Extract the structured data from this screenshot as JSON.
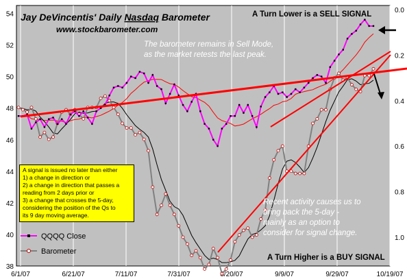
{
  "title": {
    "line1_prefix": "Jay DeVincentis' Daily ",
    "line1_underlined": "Nasdaq",
    "line1_suffix": " Barometer",
    "url": "www.stockbarometer.com"
  },
  "annotations": {
    "sell_signal": "A Turn Lower is a SELL SIGNAL",
    "buy_signal": "A Turn Higher is a BUY SIGNAL",
    "sell_mode_line1": "The barometer remains in Sell Mode,",
    "sell_mode_line2": "as the market retests the last peak.",
    "recent_line1": "Recent activity causes us to",
    "recent_line2": "bring back the 5-day -",
    "recent_line3": "mainly as an option to",
    "recent_line4": "consider for signal change.",
    "box_line1": "A signal is issued no later than either",
    "box_line2": "1) a change in direction or",
    "box_line3": "2) a change in direction that passes a",
    "box_line4": "reading from 2 days prior or",
    "box_line5": "3) a change that crosses the 5-day,",
    "box_line6": "considering the position of the Qs to",
    "box_line7": "its 9 day moving average."
  },
  "legend": {
    "qqqq": "QQQQ Close",
    "barometer": "Barometer"
  },
  "colors": {
    "plot_bg": "#c0c0c0",
    "qqqq": "#ff00ff",
    "barometer_line": "#808080",
    "barometer_marker": "#c00000",
    "ma": "#ff0000",
    "black": "#000000",
    "trend": "#ff0000"
  },
  "chart_data": {
    "type": "line",
    "x_ticks": [
      "6/1/07",
      "6/21/07",
      "7/11/07",
      "7/31/07",
      "8/20/07",
      "9/9/07",
      "9/29/07",
      "10/19/07"
    ],
    "y_left": {
      "ticks": [
        "38",
        "40",
        "42",
        "44",
        "46",
        "48",
        "50",
        "52",
        "54"
      ],
      "range": [
        38,
        54.5
      ]
    },
    "y_right": {
      "ticks": [
        "0.0",
        "0.2",
        "0.4",
        "0.6",
        "0.8",
        "1.0"
      ],
      "range": [
        0,
        1.2
      ],
      "inverted": true
    },
    "series": [
      {
        "name": "QQQQ Close",
        "axis": "left",
        "values": [
          47.5,
          47.5,
          47.6,
          46.7,
          47.1,
          47.3,
          46.8,
          47.3,
          47.4,
          47.0,
          47.3,
          47.0,
          47.6,
          47.8,
          47.5,
          47.8,
          47.4,
          47.0,
          47.8,
          48.0,
          48.2,
          48.8,
          49.3,
          49.4,
          49.3,
          49.6,
          50.0,
          49.9,
          50.3,
          50.2,
          49.6,
          50.1,
          49.4,
          49.2,
          48.3,
          48.9,
          49.5,
          48.8,
          48.2,
          47.8,
          48.4,
          48.9,
          47.8,
          47.0,
          46.7,
          46.0,
          45.6,
          46.7,
          47.0,
          47.5,
          47.5,
          48.2,
          47.7,
          48.2,
          47.5,
          46.8,
          48.1,
          48.7,
          49.0,
          49.4,
          48.9,
          49.0,
          48.7,
          48.9,
          49.2,
          49.0,
          49.3,
          49.6,
          49.9,
          50.1,
          50.0,
          49.6,
          50.6,
          51.0,
          51.4,
          51.7,
          52.4,
          52.7,
          52.9,
          53.3,
          53.6,
          53.2,
          53.2
        ]
      },
      {
        "name": "Barometer",
        "axis": "right",
        "values": [
          0.43,
          0.44,
          0.45,
          0.43,
          0.48,
          0.56,
          0.54,
          0.57,
          0.56,
          0.5,
          0.45,
          0.44,
          0.46,
          0.44,
          0.46,
          0.48,
          0.43,
          0.43,
          0.43,
          0.39,
          0.38,
          0.4,
          0.43,
          0.46,
          0.5,
          0.52,
          0.52,
          0.55,
          0.54,
          0.57,
          0.62,
          0.78,
          0.9,
          0.86,
          0.81,
          0.86,
          0.9,
          0.95,
          1.0,
          1.03,
          1.08,
          1.06,
          1.09,
          1.14,
          1.12,
          1.05,
          1.09,
          1.16,
          1.14,
          1.1,
          1.02,
          0.99,
          0.97,
          0.96,
          1.0,
          0.99,
          0.92,
          0.88,
          0.74,
          0.66,
          0.62,
          0.6,
          0.71,
          0.71,
          0.72,
          0.72,
          0.72,
          0.6,
          0.5,
          0.48,
          0.44,
          0.44,
          0.35,
          0.3,
          0.28,
          0.31,
          0.3,
          0.33,
          0.35,
          0.36,
          0.29,
          0.29,
          0.26
        ]
      }
    ]
  }
}
